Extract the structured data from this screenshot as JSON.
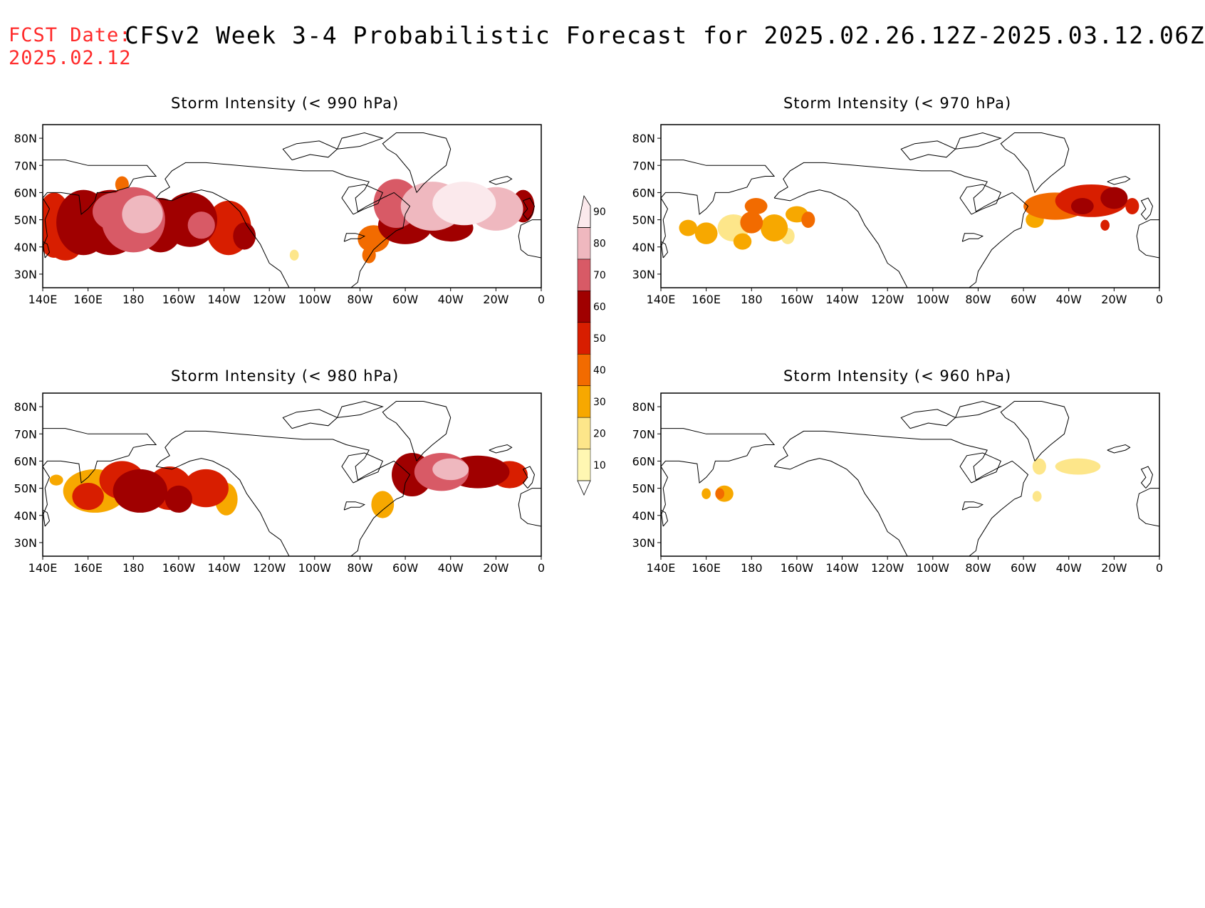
{
  "header": {
    "fcst_label": "FCST Date:",
    "fcst_date": "2025.02.12",
    "title": "CFSv2 Week 3-4 Probabilistic Forecast for 2025.02.26.12Z-2025.03.12.06Z"
  },
  "axes": {
    "lat_labels": [
      "80N",
      "70N",
      "60N",
      "50N",
      "40N",
      "30N"
    ],
    "lat_values": [
      80,
      70,
      60,
      50,
      40,
      30
    ],
    "lon_labels": [
      "140E",
      "160E",
      "180",
      "160W",
      "140W",
      "120W",
      "100W",
      "80W",
      "60W",
      "40W",
      "20W",
      "0"
    ],
    "lon_values": [
      140,
      160,
      180,
      200,
      220,
      240,
      260,
      280,
      300,
      320,
      340,
      360
    ],
    "lon_range": [
      140,
      360
    ],
    "lat_range": [
      25,
      85
    ]
  },
  "colorbar": {
    "levels": [
      "10",
      "20",
      "30",
      "40",
      "50",
      "60",
      "70",
      "80",
      "90"
    ],
    "colors": [
      "#fff7b2",
      "#fde68a",
      "#f7a800",
      "#f26b00",
      "#d81e00",
      "#a00000",
      "#d85a66",
      "#efb8bf",
      "#fbe9ec"
    ]
  },
  "panels": [
    {
      "title": "Storm Intensity (< 990 hPa)",
      "blobs": [
        {
          "lon": 145,
          "lat": 48,
          "rlon": 8,
          "rlat": 12,
          "level": 4
        },
        {
          "lon": 150,
          "lat": 40,
          "rlon": 7,
          "rlat": 5,
          "level": 4
        },
        {
          "lon": 158,
          "lat": 49,
          "rlon": 12,
          "rlat": 12,
          "level": 5
        },
        {
          "lon": 170,
          "lat": 49,
          "rlon": 14,
          "rlat": 12,
          "level": 5
        },
        {
          "lon": 172,
          "lat": 53,
          "rlon": 10,
          "rlat": 7,
          "level": 6
        },
        {
          "lon": 180,
          "lat": 50,
          "rlon": 14,
          "rlat": 12,
          "level": 6
        },
        {
          "lon": 184,
          "lat": 52,
          "rlon": 9,
          "rlat": 7,
          "level": 7
        },
        {
          "lon": 192,
          "lat": 48,
          "rlon": 10,
          "rlat": 10,
          "level": 5
        },
        {
          "lon": 205,
          "lat": 50,
          "rlon": 12,
          "rlat": 10,
          "level": 5
        },
        {
          "lon": 210,
          "lat": 48,
          "rlon": 6,
          "rlat": 5,
          "level": 6
        },
        {
          "lon": 222,
          "lat": 47,
          "rlon": 10,
          "rlat": 10,
          "level": 4
        },
        {
          "lon": 229,
          "lat": 44,
          "rlon": 5,
          "rlat": 5,
          "level": 5
        },
        {
          "lon": 175,
          "lat": 63,
          "rlon": 3,
          "rlat": 3,
          "level": 3
        },
        {
          "lon": 251,
          "lat": 37,
          "rlon": 2,
          "rlat": 2,
          "level": 1
        },
        {
          "lon": 286,
          "lat": 43,
          "rlon": 7,
          "rlat": 5,
          "level": 3
        },
        {
          "lon": 284,
          "lat": 37,
          "rlon": 3,
          "rlat": 3,
          "level": 3
        },
        {
          "lon": 296,
          "lat": 56,
          "rlon": 10,
          "rlat": 9,
          "level": 6
        },
        {
          "lon": 300,
          "lat": 48,
          "rlon": 12,
          "rlat": 7,
          "level": 5
        },
        {
          "lon": 312,
          "lat": 55,
          "rlon": 14,
          "rlat": 9,
          "level": 7
        },
        {
          "lon": 326,
          "lat": 56,
          "rlon": 14,
          "rlat": 8,
          "level": 8
        },
        {
          "lon": 320,
          "lat": 47,
          "rlon": 10,
          "rlat": 5,
          "level": 5
        },
        {
          "lon": 340,
          "lat": 54,
          "rlon": 12,
          "rlat": 8,
          "level": 7
        },
        {
          "lon": 352,
          "lat": 55,
          "rlon": 5,
          "rlat": 6,
          "level": 5
        }
      ]
    },
    {
      "title": "Storm Intensity (< 970 hPa)",
      "blobs": [
        {
          "lon": 160,
          "lat": 45,
          "rlon": 5,
          "rlat": 4,
          "level": 2
        },
        {
          "lon": 152,
          "lat": 47,
          "rlon": 4,
          "rlat": 3,
          "level": 2
        },
        {
          "lon": 172,
          "lat": 47,
          "rlon": 7,
          "rlat": 5,
          "level": 1
        },
        {
          "lon": 176,
          "lat": 42,
          "rlon": 4,
          "rlat": 3,
          "level": 2
        },
        {
          "lon": 180,
          "lat": 49,
          "rlon": 5,
          "rlat": 4,
          "level": 3
        },
        {
          "lon": 182,
          "lat": 55,
          "rlon": 5,
          "rlat": 3,
          "level": 3
        },
        {
          "lon": 190,
          "lat": 47,
          "rlon": 6,
          "rlat": 5,
          "level": 2
        },
        {
          "lon": 196,
          "lat": 44,
          "rlon": 3,
          "rlat": 3,
          "level": 1
        },
        {
          "lon": 200,
          "lat": 52,
          "rlon": 5,
          "rlat": 3,
          "level": 2
        },
        {
          "lon": 205,
          "lat": 50,
          "rlon": 3,
          "rlat": 3,
          "level": 3
        },
        {
          "lon": 314,
          "lat": 55,
          "rlon": 14,
          "rlat": 5,
          "level": 3
        },
        {
          "lon": 330,
          "lat": 57,
          "rlon": 16,
          "rlat": 6,
          "level": 4
        },
        {
          "lon": 340,
          "lat": 58,
          "rlon": 6,
          "rlat": 4,
          "level": 5
        },
        {
          "lon": 326,
          "lat": 55,
          "rlon": 5,
          "rlat": 3,
          "level": 5
        },
        {
          "lon": 305,
          "lat": 50,
          "rlon": 4,
          "rlat": 3,
          "level": 2
        },
        {
          "lon": 348,
          "lat": 55,
          "rlon": 3,
          "rlat": 3,
          "level": 4
        },
        {
          "lon": 336,
          "lat": 48,
          "rlon": 2,
          "rlat": 2,
          "level": 4
        }
      ]
    },
    {
      "title": "Storm Intensity (< 980 hPa)",
      "blobs": [
        {
          "lon": 163,
          "lat": 49,
          "rlon": 14,
          "rlat": 8,
          "level": 2
        },
        {
          "lon": 160,
          "lat": 47,
          "rlon": 7,
          "rlat": 5,
          "level": 4
        },
        {
          "lon": 175,
          "lat": 53,
          "rlon": 10,
          "rlat": 7,
          "level": 4
        },
        {
          "lon": 183,
          "lat": 49,
          "rlon": 12,
          "rlat": 8,
          "level": 5
        },
        {
          "lon": 196,
          "lat": 50,
          "rlon": 10,
          "rlat": 8,
          "level": 4
        },
        {
          "lon": 200,
          "lat": 46,
          "rlon": 6,
          "rlat": 5,
          "level": 5
        },
        {
          "lon": 212,
          "lat": 50,
          "rlon": 10,
          "rlat": 7,
          "level": 4
        },
        {
          "lon": 221,
          "lat": 46,
          "rlon": 5,
          "rlat": 6,
          "level": 2
        },
        {
          "lon": 146,
          "lat": 53,
          "rlon": 3,
          "rlat": 2,
          "level": 2
        },
        {
          "lon": 290,
          "lat": 44,
          "rlon": 5,
          "rlat": 5,
          "level": 2
        },
        {
          "lon": 303,
          "lat": 55,
          "rlon": 9,
          "rlat": 8,
          "level": 5
        },
        {
          "lon": 316,
          "lat": 56,
          "rlon": 12,
          "rlat": 7,
          "level": 6
        },
        {
          "lon": 332,
          "lat": 56,
          "rlon": 14,
          "rlat": 6,
          "level": 5
        },
        {
          "lon": 346,
          "lat": 55,
          "rlon": 8,
          "rlat": 5,
          "level": 4
        },
        {
          "lon": 320,
          "lat": 57,
          "rlon": 8,
          "rlat": 4,
          "level": 7
        }
      ]
    },
    {
      "title": "Storm Intensity (< 960 hPa)",
      "blobs": [
        {
          "lon": 160,
          "lat": 48,
          "rlon": 2,
          "rlat": 2,
          "level": 2
        },
        {
          "lon": 168,
          "lat": 48,
          "rlon": 4,
          "rlat": 3,
          "level": 2
        },
        {
          "lon": 166,
          "lat": 48,
          "rlon": 2,
          "rlat": 2,
          "level": 3
        },
        {
          "lon": 307,
          "lat": 58,
          "rlon": 3,
          "rlat": 3,
          "level": 1
        },
        {
          "lon": 324,
          "lat": 58,
          "rlon": 10,
          "rlat": 3,
          "level": 1
        },
        {
          "lon": 306,
          "lat": 47,
          "rlon": 2,
          "rlat": 2,
          "level": 1
        }
      ]
    }
  ]
}
